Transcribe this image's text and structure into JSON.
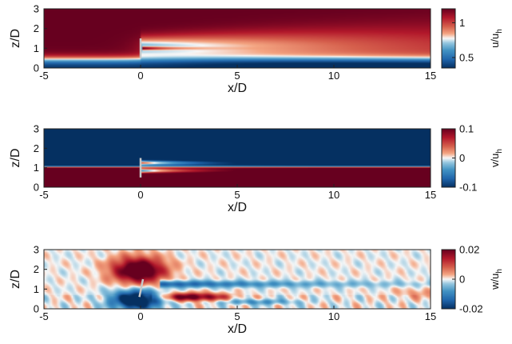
{
  "chart_data": [
    {
      "type": "heatmap",
      "field": "u",
      "xlabel": "x/D",
      "ylabel": "z/D",
      "colorbar_label": "u/u_h",
      "xlim": [
        -5,
        15
      ],
      "ylim": [
        0,
        3
      ],
      "xticks": [
        -5,
        0,
        5,
        10,
        15
      ],
      "yticks": [
        0,
        1,
        2,
        3
      ],
      "clim": [
        0.35,
        1.2
      ],
      "colorbar_ticks": [
        0.5,
        1
      ],
      "colormap": {
        "low": "#053061",
        "mid": "#f7f7f7",
        "high": "#67001f"
      },
      "turbine": {
        "x": 0,
        "z_min": 0.5,
        "z_max": 1.5
      },
      "description_values": {
        "free_stream_upper": 1.2,
        "ground_layer": 0.4,
        "hub_jet_peak": 1.15,
        "wake_deficit_min": 0.45
      }
    },
    {
      "type": "heatmap",
      "field": "v",
      "xlabel": "x/D",
      "ylabel": "z/D",
      "colorbar_label": "v/u_h",
      "xlim": [
        -5,
        15
      ],
      "ylim": [
        0,
        3
      ],
      "xticks": [
        -5,
        0,
        5,
        10,
        15
      ],
      "yticks": [
        0,
        1,
        2,
        3
      ],
      "clim": [
        -0.1,
        0.1
      ],
      "colorbar_ticks": [
        0.1,
        0,
        -0.1
      ],
      "colormap": {
        "low": "#053061",
        "mid": "#f7f7f7",
        "high": "#67001f"
      },
      "turbine": {
        "x": 0,
        "z_min": 0.5,
        "z_max": 1.5
      },
      "description_values": {
        "upper_region": -0.1,
        "lower_region": 0.1
      }
    },
    {
      "type": "heatmap",
      "field": "w",
      "xlabel": "x/D",
      "ylabel": "z/D",
      "colorbar_label": "w/u_h",
      "xlim": [
        -5,
        15
      ],
      "ylim": [
        0,
        3
      ],
      "xticks": [
        -5,
        0,
        5,
        10,
        15
      ],
      "yticks": [
        0,
        1,
        2,
        3
      ],
      "clim": [
        -0.02,
        0.02
      ],
      "colorbar_ticks": [
        0.02,
        0,
        -0.02
      ],
      "colormap": {
        "low": "#053061",
        "mid": "#f7f7f7",
        "high": "#67001f"
      },
      "turbine": {
        "x": 0,
        "z_min": 0.6,
        "z_max": 1.5,
        "tilted": true
      },
      "description_values": {
        "upstream_upper_peak": 0.02,
        "upstream_lower_trough": -0.02,
        "wake_lower_positive": 0.018,
        "wake_upper_negative": -0.015
      }
    }
  ]
}
